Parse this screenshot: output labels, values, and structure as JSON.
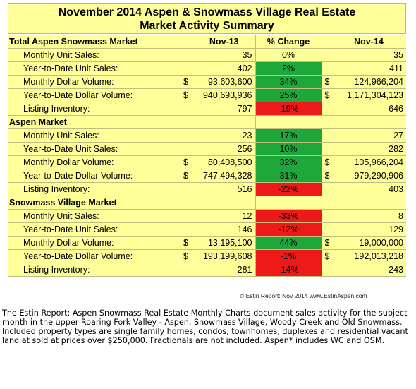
{
  "title": {
    "line1": "November 2014 Aspen & Snowmass Village Real Estate",
    "line2": "Market Activity Summary"
  },
  "columns": {
    "col_nov13": "Nov-13",
    "col_change": "% Change",
    "col_nov14": "Nov-14"
  },
  "sections": [
    {
      "name": "Total Aspen Snowmass Market",
      "rows": [
        {
          "label": "Monthly Unit Sales:",
          "d1": "",
          "nov13": "35",
          "change": "0%",
          "d2": "",
          "nov14": "35",
          "status": "neutral"
        },
        {
          "label": "Year-to-Date Unit Sales:",
          "d1": "",
          "nov13": "402",
          "change": "2%",
          "d2": "",
          "nov14": "411",
          "status": "up"
        },
        {
          "label": "Monthly Dollar Volume:",
          "d1": "$",
          "nov13": "93,603,600",
          "change": "34%",
          "d2": "$",
          "nov14": "124,966,204",
          "status": "up"
        },
        {
          "label": "Year-to-Date Dollar Volume:",
          "d1": "$",
          "nov13": "940,693,936",
          "change": "25%",
          "d2": "$",
          "nov14": "1,171,304,123",
          "status": "up"
        },
        {
          "label": "Listing Inventory:",
          "d1": "",
          "nov13": "797",
          "change": "-19%",
          "d2": "",
          "nov14": "646",
          "status": "down"
        }
      ]
    },
    {
      "name": "Aspen Market",
      "rows": [
        {
          "label": "Monthly Unit Sales:",
          "d1": "",
          "nov13": "23",
          "change": "17%",
          "d2": "",
          "nov14": "27",
          "status": "up"
        },
        {
          "label": "Year-to-Date Unit Sales:",
          "d1": "",
          "nov13": "256",
          "change": "10%",
          "d2": "",
          "nov14": "282",
          "status": "up"
        },
        {
          "label": "Monthly Dollar Volume:",
          "d1": "$",
          "nov13": "80,408,500",
          "change": "32%",
          "d2": "$",
          "nov14": "105,966,204",
          "status": "up"
        },
        {
          "label": "Year-to-Date Dollar Volume:",
          "d1": "$",
          "nov13": "747,494,328",
          "change": "31%",
          "d2": "$",
          "nov14": "979,290,906",
          "status": "up"
        },
        {
          "label": "Listing Inventory:",
          "d1": "",
          "nov13": "516",
          "change": "-22%",
          "d2": "",
          "nov14": "403",
          "status": "down"
        }
      ]
    },
    {
      "name": "Snowmass Village Market",
      "rows": [
        {
          "label": "Monthly Unit Sales:",
          "d1": "",
          "nov13": "12",
          "change": "-33%",
          "d2": "",
          "nov14": "8",
          "status": "down"
        },
        {
          "label": "Year-to-Date Unit Sales:",
          "d1": "",
          "nov13": "146",
          "change": "-12%",
          "d2": "",
          "nov14": "129",
          "status": "down"
        },
        {
          "label": "Monthly Dollar Volume:",
          "d1": "$",
          "nov13": "13,195,100",
          "change": "44%",
          "d2": "$",
          "nov14": "19,000,000",
          "status": "up"
        },
        {
          "label": "Year-to-Date Dollar Volume:",
          "d1": "$",
          "nov13": "193,199,608",
          "change": "-1%",
          "d2": "$",
          "nov14": "192,013,218",
          "status": "down"
        },
        {
          "label": "Listing Inventory:",
          "d1": "",
          "nov13": "281",
          "change": "-14%",
          "d2": "",
          "nov14": "243",
          "status": "down"
        }
      ]
    }
  ],
  "colors": {
    "up": "#1ea83c",
    "down": "#ee1a1a",
    "panel": "#ffff99"
  },
  "credit": "© Estin Report: Nov 2014 www.EstinAspen.com",
  "description": "The Estin Report: Aspen Snowmass Real Estate Monthly Charts document sales activity for the subject month in the upper Roaring Fork Valley - Aspen, Snowmass Village, Woody Creek and Old Snowmass. Included property types are single family homes, condos, townhomes, duplexes and residential vacant land at sold at prices over $250,000. Fractionals are not included. Aspen* includes WC and OSM."
}
